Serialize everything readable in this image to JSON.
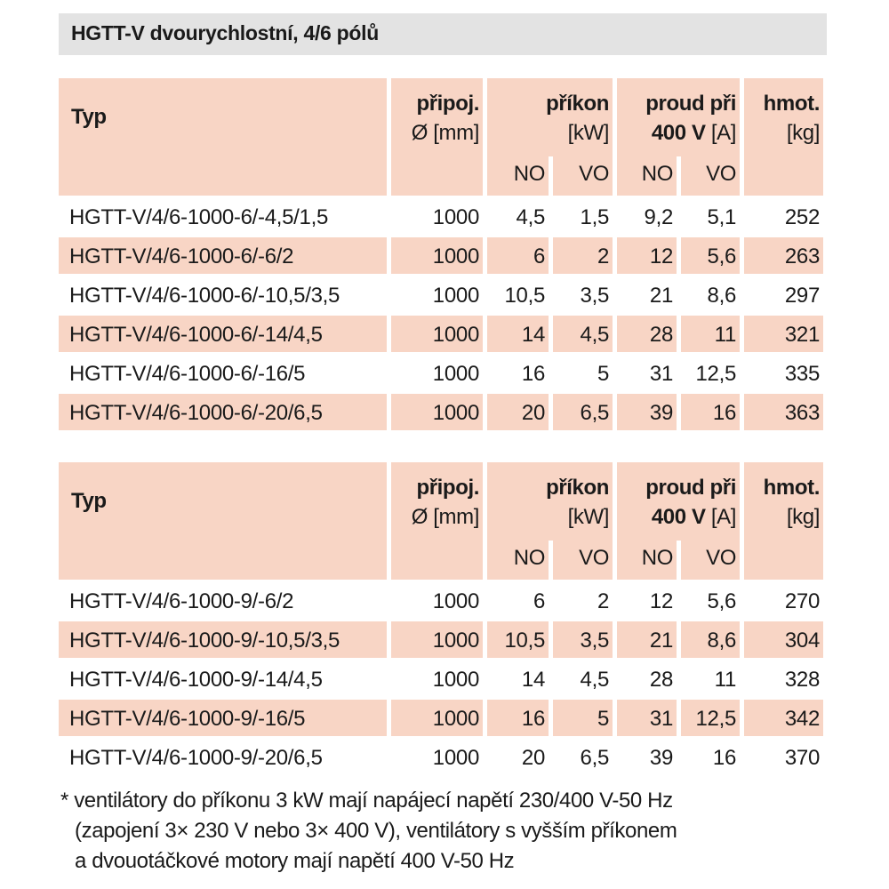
{
  "title": "HGTT-V dvourychlostní, 4/6 pólů",
  "header": {
    "typ": "Typ",
    "pripoj": "připoj.",
    "pripoj_unit": "Ø [mm]",
    "prikon": "příkon",
    "prikon_unit": "[kW]",
    "proud": "proud při",
    "proud_volt": "400 V",
    "proud_unit": "[A]",
    "hmot": "hmot.",
    "hmot_unit": "[kg]",
    "no": "NO",
    "vo": "VO"
  },
  "colors": {
    "header_bg": "#f8d5c5",
    "title_bg": "#e3e3e3"
  },
  "tables": [
    {
      "rows": [
        [
          "HGTT-V/4/6-1000-6/-4,5/1,5",
          "1000",
          "4,5",
          "1,5",
          "9,2",
          "5,1",
          "252"
        ],
        [
          "HGTT-V/4/6-1000-6/-6/2",
          "1000",
          "6",
          "2",
          "12",
          "5,6",
          "263"
        ],
        [
          "HGTT-V/4/6-1000-6/-10,5/3,5",
          "1000",
          "10,5",
          "3,5",
          "21",
          "8,6",
          "297"
        ],
        [
          "HGTT-V/4/6-1000-6/-14/4,5",
          "1000",
          "14",
          "4,5",
          "28",
          "11",
          "321"
        ],
        [
          "HGTT-V/4/6-1000-6/-16/5",
          "1000",
          "16",
          "5",
          "31",
          "12,5",
          "335"
        ],
        [
          "HGTT-V/4/6-1000-6/-20/6,5",
          "1000",
          "20",
          "6,5",
          "39",
          "16",
          "363"
        ]
      ]
    },
    {
      "rows": [
        [
          "HGTT-V/4/6-1000-9/-6/2",
          "1000",
          "6",
          "2",
          "12",
          "5,6",
          "270"
        ],
        [
          "HGTT-V/4/6-1000-9/-10,5/3,5",
          "1000",
          "10,5",
          "3,5",
          "21",
          "8,6",
          "304"
        ],
        [
          "HGTT-V/4/6-1000-9/-14/4,5",
          "1000",
          "14",
          "4,5",
          "28",
          "11",
          "328"
        ],
        [
          "HGTT-V/4/6-1000-9/-16/5",
          "1000",
          "16",
          "5",
          "31",
          "12,5",
          "342"
        ],
        [
          "HGTT-V/4/6-1000-9/-20/6,5",
          "1000",
          "20",
          "6,5",
          "39",
          "16",
          "370"
        ]
      ]
    }
  ],
  "footnote": [
    "* ventilátory do příkonu 3 kW mají napájecí napětí 230/400 V-50 Hz",
    "(zapojení 3× 230 V nebo 3× 400 V), ventilátory s vyšším příkonem",
    "a dvouotáčkové motory mají napětí 400 V-50 Hz"
  ]
}
